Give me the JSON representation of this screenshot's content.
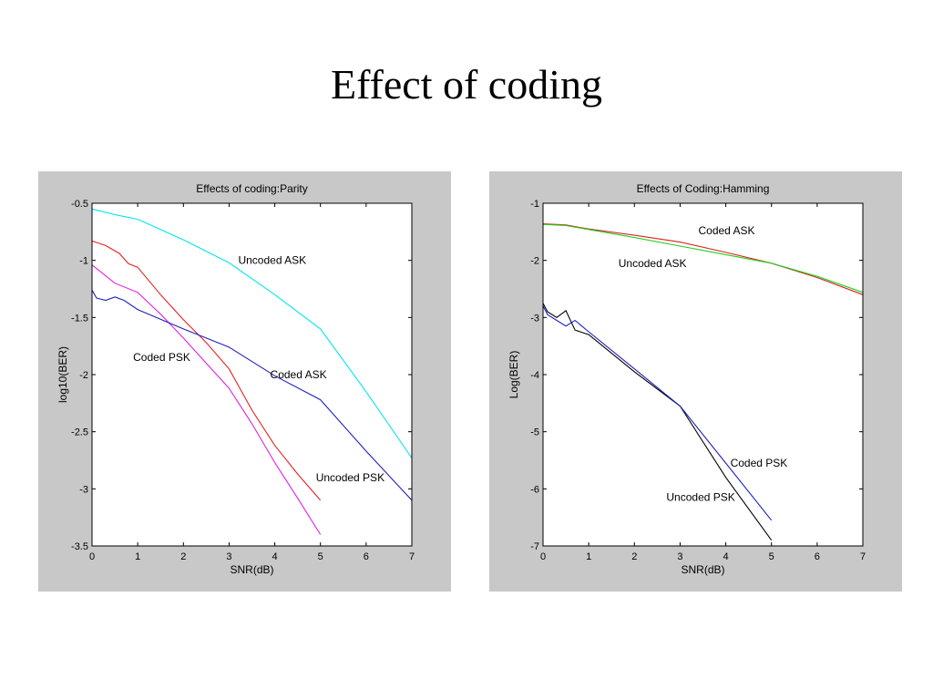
{
  "slide": {
    "title": "Effect of coding"
  },
  "chart_data": [
    {
      "type": "line",
      "title": "Effects of coding:Parity",
      "xlabel": "SNR(dB)",
      "ylabel": "log10(BER)",
      "xlim": [
        0,
        7
      ],
      "ylim": [
        -3.5,
        -0.5
      ],
      "xticks": [
        0,
        1,
        2,
        3,
        4,
        5,
        6,
        7
      ],
      "yticks": [
        -0.5,
        -1,
        -1.5,
        -2,
        -2.5,
        -3,
        -3.5
      ],
      "xtick_labels": [
        "0",
        "1",
        "2",
        "3",
        "4",
        "5",
        "6",
        "7"
      ],
      "ytick_labels": [
        "-0.5",
        "-1",
        "-1.5",
        "-2",
        "-2.5",
        "-3",
        "-3.5"
      ],
      "grid": false,
      "series": [
        {
          "color": "#00e5ee",
          "x": [
            0,
            0.5,
            1,
            2,
            3,
            4,
            5,
            6,
            7
          ],
          "y": [
            -0.55,
            -0.6,
            -0.64,
            -0.82,
            -1.02,
            -1.3,
            -1.6,
            -2.15,
            -2.73
          ]
        },
        {
          "color": "#e82020",
          "x": [
            0,
            0.3,
            0.6,
            0.8,
            1,
            1.5,
            2,
            2.5,
            3,
            3.5,
            4,
            4.5,
            5
          ],
          "y": [
            -0.83,
            -0.87,
            -0.94,
            -1.03,
            -1.06,
            -1.3,
            -1.52,
            -1.72,
            -1.95,
            -2.31,
            -2.62,
            -2.87,
            -3.1
          ]
        },
        {
          "color": "#e020e0",
          "x": [
            0,
            0.5,
            1,
            1.5,
            2,
            2.5,
            3,
            3.5,
            4,
            4.5,
            5
          ],
          "y": [
            -1.04,
            -1.2,
            -1.28,
            -1.47,
            -1.68,
            -1.9,
            -2.12,
            -2.43,
            -2.77,
            -3.08,
            -3.4
          ]
        },
        {
          "color": "#2020c0",
          "x": [
            0,
            0.1,
            0.3,
            0.5,
            0.7,
            1,
            2,
            3,
            4,
            5,
            6,
            7
          ],
          "y": [
            -1.26,
            -1.33,
            -1.35,
            -1.32,
            -1.35,
            -1.43,
            -1.6,
            -1.76,
            -2.01,
            -2.22,
            -2.67,
            -3.1
          ]
        }
      ],
      "annotations": [
        {
          "text": "Uncoded ASK",
          "x": 3.2,
          "y": -1.0
        },
        {
          "text": "Coded PSK",
          "x": 0.9,
          "y": -1.85
        },
        {
          "text": "Coded ASK",
          "x": 3.9,
          "y": -2.0
        },
        {
          "text": "Uncoded PSK",
          "x": 4.9,
          "y": -2.9
        }
      ]
    },
    {
      "type": "line",
      "title": "Effects of Coding:Hamming",
      "xlabel": "SNR(dB)",
      "ylabel": "Log(BER)",
      "xlim": [
        0,
        7
      ],
      "ylim": [
        -7,
        -1
      ],
      "xticks": [
        0,
        1,
        2,
        3,
        4,
        5,
        6,
        7
      ],
      "yticks": [
        -1,
        -2,
        -3,
        -4,
        -5,
        -6,
        -7
      ],
      "xtick_labels": [
        "0",
        "1",
        "2",
        "3",
        "4",
        "5",
        "6",
        "7"
      ],
      "ytick_labels": [
        "-1",
        "-2",
        "-3",
        "-4",
        "-5",
        "-6",
        "-7"
      ],
      "grid": false,
      "series": [
        {
          "color": "#e02020",
          "x": [
            0,
            0.5,
            1,
            2,
            3,
            4,
            5,
            6,
            7
          ],
          "y": [
            -1.36,
            -1.38,
            -1.45,
            -1.56,
            -1.68,
            -1.86,
            -2.05,
            -2.3,
            -2.6
          ]
        },
        {
          "color": "#20d020",
          "x": [
            0,
            0.5,
            1,
            2,
            3,
            4,
            5,
            6,
            7
          ],
          "y": [
            -1.37,
            -1.39,
            -1.46,
            -1.6,
            -1.75,
            -1.9,
            -2.05,
            -2.28,
            -2.56
          ]
        },
        {
          "color": "#000000",
          "x": [
            0,
            0.1,
            0.3,
            0.5,
            0.7,
            1,
            2,
            3,
            4,
            5
          ],
          "y": [
            -2.75,
            -2.9,
            -3.0,
            -2.88,
            -3.22,
            -3.3,
            -3.95,
            -4.55,
            -5.8,
            -6.9
          ]
        },
        {
          "color": "#2020c0",
          "x": [
            0,
            0.1,
            0.3,
            0.5,
            0.7,
            1,
            2,
            3,
            4,
            5
          ],
          "y": [
            -2.8,
            -2.95,
            -3.05,
            -3.15,
            -3.05,
            -3.25,
            -3.9,
            -4.55,
            -5.55,
            -6.55
          ]
        }
      ],
      "annotations": [
        {
          "text": "Coded ASK",
          "x": 3.4,
          "y": -1.48
        },
        {
          "text": "Uncoded ASK",
          "x": 1.65,
          "y": -2.05
        },
        {
          "text": "Coded PSK",
          "x": 4.1,
          "y": -5.55
        },
        {
          "text": "Uncoded PSK",
          "x": 2.7,
          "y": -6.15
        }
      ]
    }
  ]
}
